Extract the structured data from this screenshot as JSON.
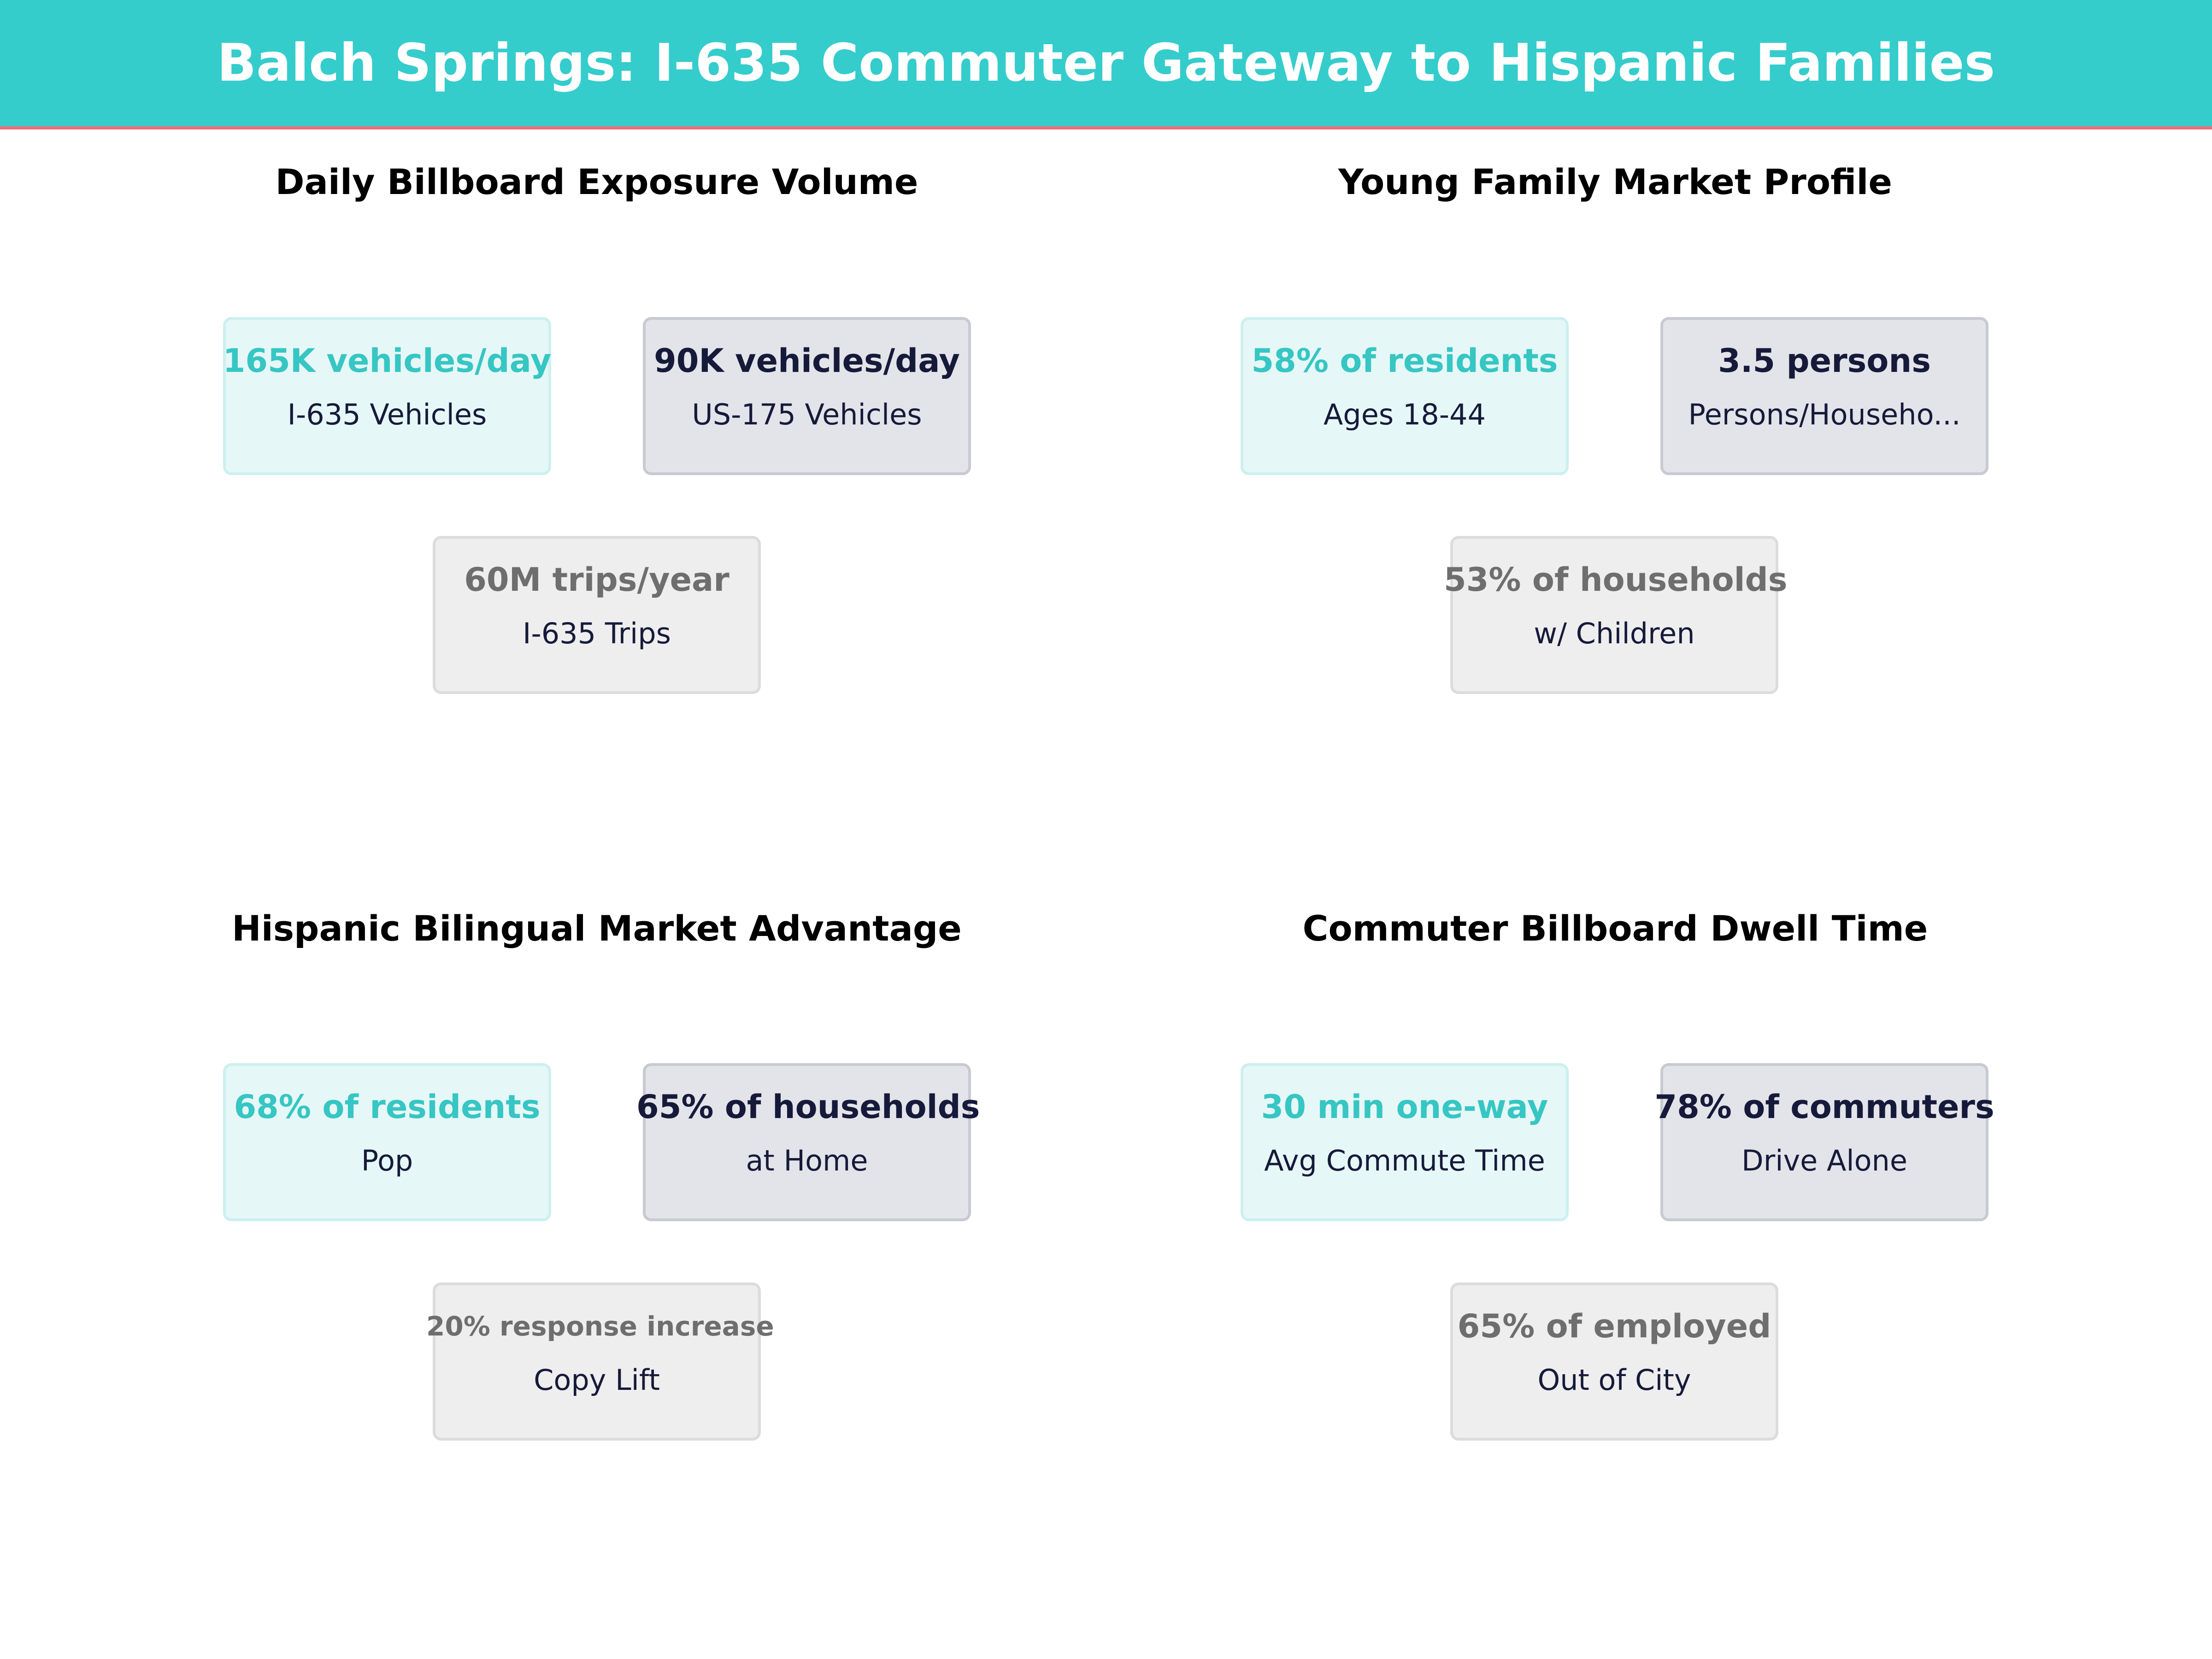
{
  "header": {
    "title": "Balch Springs: I-635 Commuter Gateway to Hispanic Families",
    "background_color": "#35cccc",
    "accent_line_color": "#e8727a"
  },
  "panels": [
    {
      "title": "Daily Billboard Exposure Volume",
      "cards": [
        {
          "value": "165K vehicles/day",
          "label": "I-635  Vehicles"
        },
        {
          "value": "90K vehicles/day",
          "label": "US-175  Vehicles"
        },
        {
          "value": "60M trips/year",
          "label": "I-635  Trips"
        }
      ]
    },
    {
      "title": "Young Family Market Profile",
      "cards": [
        {
          "value": "58% of residents",
          "label": "Ages 18-44"
        },
        {
          "value": "3.5 persons",
          "label": "Persons/Househo..."
        },
        {
          "value": "53% of households",
          "label": "w/ Children"
        }
      ]
    },
    {
      "title": "Hispanic Bilingual Market Advantage",
      "cards": [
        {
          "value": "68% of residents",
          "label": "Pop"
        },
        {
          "value": "65% of households",
          "label": "at Home"
        },
        {
          "value": "20% response increase",
          "label": "Copy Lift"
        }
      ]
    },
    {
      "title": "Commuter Billboard Dwell Time",
      "cards": [
        {
          "value": "30 min one-way",
          "label": "Avg Commute Time"
        },
        {
          "value": "78% of commuters",
          "label": "Drive Alone"
        },
        {
          "value": "65% of employed",
          "label": "Out of City"
        }
      ]
    }
  ],
  "colors": {
    "teal_value": "#36c6c3",
    "navy_value": "#161a3a",
    "gray_value": "#6e6e6e"
  }
}
